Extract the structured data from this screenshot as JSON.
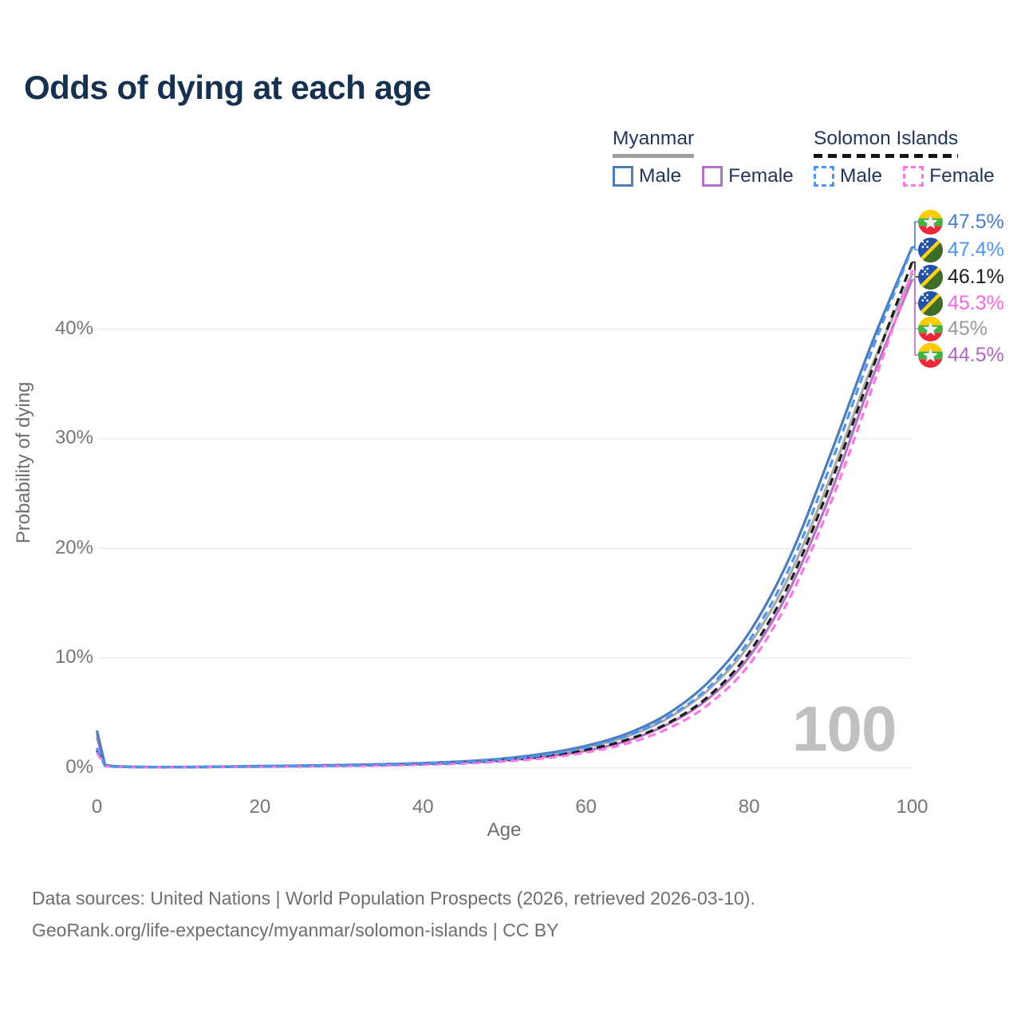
{
  "title": "Odds of dying at each age",
  "watermark": "100",
  "legend": {
    "groups": [
      {
        "country": "Myanmar",
        "style": "solid",
        "line_color": "#9e9e9e",
        "items": [
          {
            "label": "Male",
            "color": "#4d7cbb"
          },
          {
            "label": "Female",
            "color": "#b472c4"
          }
        ]
      },
      {
        "country": "Solomon Islands",
        "style": "dashed",
        "line_color": "#141414",
        "items": [
          {
            "label": "Male",
            "color": "#4e95f1"
          },
          {
            "label": "Female",
            "color": "#fc76e4"
          }
        ]
      }
    ]
  },
  "axes": {
    "x": {
      "label": "Age",
      "ticks": [
        {
          "label": "0",
          "value": 0
        },
        {
          "label": "20",
          "value": 20
        },
        {
          "label": "40",
          "value": 40
        },
        {
          "label": "60",
          "value": 60
        },
        {
          "label": "80",
          "value": 80
        },
        {
          "label": "100",
          "value": 100
        }
      ]
    },
    "y": {
      "label": "Probability of dying",
      "ticks": [
        {
          "label": "0%",
          "value": 0
        },
        {
          "label": "10%",
          "value": 10
        },
        {
          "label": "20%",
          "value": 20
        },
        {
          "label": "30%",
          "value": 30
        },
        {
          "label": "40%",
          "value": 40
        }
      ]
    }
  },
  "endpoints": [
    {
      "series": "myanmar-male",
      "flag": "myanmar",
      "label": "47.5%",
      "color": "#4a7dc9"
    },
    {
      "series": "solomon-male",
      "flag": "solomon",
      "label": "47.4%",
      "color": "#4e95f1"
    },
    {
      "series": "solomon-both",
      "flag": "solomon",
      "label": "46.1%",
      "color": "#1c1c1c"
    },
    {
      "series": "solomon-female",
      "flag": "solomon",
      "label": "45.3%",
      "color": "#fb64e3"
    },
    {
      "series": "myanmar-both",
      "flag": "myanmar",
      "label": "45%",
      "color": "#9b9b9b"
    },
    {
      "series": "myanmar-female",
      "flag": "myanmar",
      "label": "44.5%",
      "color": "#b065c6"
    }
  ],
  "footer": {
    "line1": "Data sources: United Nations | World Population Prospects (2026, retrieved 2026-03-10).",
    "line2": "GeoRank.org/life-expectancy/myanmar/solomon-islands | CC BY"
  },
  "chart_data": {
    "type": "line",
    "title": "Odds of dying at each age",
    "xlabel": "Age",
    "ylabel": "Probability of dying (%)",
    "xlim": [
      0,
      100
    ],
    "ylim": [
      0,
      47.5
    ],
    "grid": "horizontal",
    "legend_position": "top-right",
    "hovered_age": 100,
    "x": [
      0,
      1,
      2,
      5,
      10,
      15,
      20,
      25,
      30,
      35,
      40,
      45,
      50,
      55,
      60,
      65,
      70,
      75,
      80,
      85,
      90,
      95,
      100
    ],
    "series": [
      {
        "id": "myanmar-both",
        "name": "Myanmar",
        "style": "solid",
        "color": "#a9a9a9",
        "values": [
          3.1,
          0.23,
          0.14,
          0.07,
          0.06,
          0.09,
          0.13,
          0.18,
          0.23,
          0.29,
          0.39,
          0.54,
          0.78,
          1.18,
          1.85,
          2.85,
          4.5,
          7.1,
          11.2,
          17.6,
          26.5,
          36.5,
          45.0
        ]
      },
      {
        "id": "myanmar-female",
        "name": "Myanmar Female",
        "style": "solid",
        "color": "#b472c4",
        "values": [
          2.8,
          0.21,
          0.13,
          0.06,
          0.05,
          0.08,
          0.11,
          0.15,
          0.19,
          0.25,
          0.33,
          0.46,
          0.67,
          1.0,
          1.55,
          2.45,
          3.95,
          6.3,
          10.1,
          16.3,
          25.0,
          35.3,
          44.5
        ]
      },
      {
        "id": "myanmar-male",
        "name": "Myanmar Male",
        "style": "solid",
        "color": "#4d7cbb",
        "values": [
          3.4,
          0.25,
          0.15,
          0.08,
          0.07,
          0.1,
          0.15,
          0.2,
          0.25,
          0.32,
          0.42,
          0.58,
          0.85,
          1.3,
          2.0,
          3.1,
          4.9,
          7.8,
          12.3,
          19.2,
          28.6,
          38.6,
          47.5
        ]
      },
      {
        "id": "solomon-both",
        "name": "Solomon Islands",
        "style": "dashed",
        "color": "#1c1c1c",
        "values": [
          1.6,
          0.18,
          0.11,
          0.06,
          0.05,
          0.08,
          0.11,
          0.15,
          0.19,
          0.25,
          0.33,
          0.46,
          0.68,
          1.03,
          1.62,
          2.55,
          4.05,
          6.5,
          10.5,
          16.9,
          25.9,
          36.1,
          46.1
        ]
      },
      {
        "id": "solomon-female",
        "name": "Solomon Islands Female",
        "style": "dashed",
        "color": "#fc76e4",
        "values": [
          1.4,
          0.16,
          0.1,
          0.05,
          0.05,
          0.07,
          0.09,
          0.12,
          0.16,
          0.21,
          0.28,
          0.39,
          0.58,
          0.88,
          1.4,
          2.2,
          3.55,
          5.75,
          9.4,
          15.5,
          24.1,
          34.4,
          45.3
        ]
      },
      {
        "id": "solomon-male",
        "name": "Solomon Islands Male",
        "style": "dashed",
        "color": "#4e95f1",
        "values": [
          1.8,
          0.2,
          0.12,
          0.07,
          0.06,
          0.09,
          0.13,
          0.17,
          0.22,
          0.29,
          0.38,
          0.52,
          0.78,
          1.18,
          1.85,
          2.9,
          4.6,
          7.3,
          11.6,
          18.3,
          27.6,
          37.9,
          47.4
        ]
      }
    ]
  }
}
